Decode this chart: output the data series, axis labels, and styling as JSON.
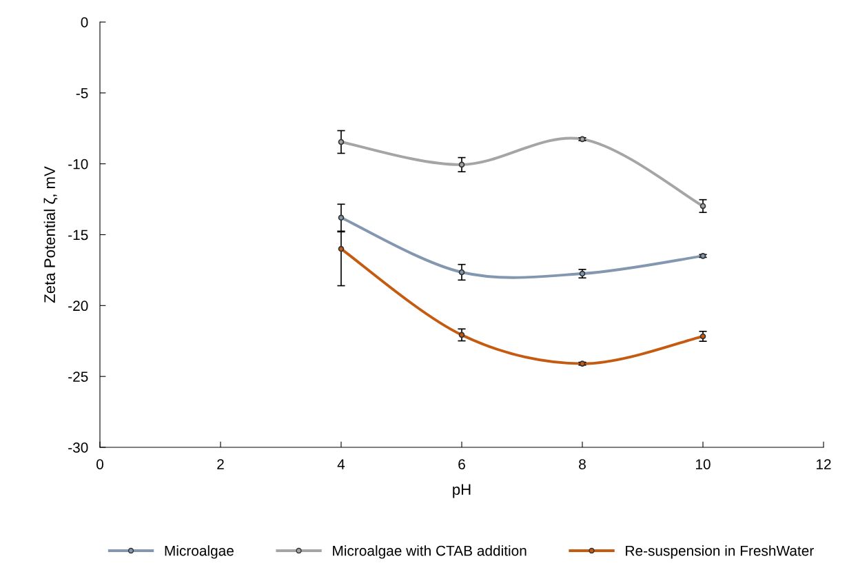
{
  "chart_data": {
    "type": "line",
    "xlabel": "pH",
    "ylabel": "Zeta Potential ζ, mV",
    "x": [
      4,
      6,
      8,
      10
    ],
    "series": [
      {
        "name": "Microalgae",
        "color": "#8497b0",
        "values": [
          -13.8,
          -17.65,
          -17.75,
          -16.5
        ],
        "errors": [
          0.95,
          0.55,
          0.3,
          0.1
        ]
      },
      {
        "name": "Microalgae with CTAB addition",
        "color": "#a5a5a5",
        "values": [
          -8.46,
          -10.06,
          -8.26,
          -12.98
        ],
        "errors": [
          0.8,
          0.5,
          0.1,
          0.45
        ]
      },
      {
        "name": "Re-suspension in FreshWater",
        "color": "#c55a11",
        "values": [
          -16.0,
          -22.07,
          -24.1,
          -22.17
        ],
        "errors": [
          [
            -18.6,
            -14.8
          ],
          0.42,
          0.1,
          0.35
        ]
      }
    ],
    "xlim": [
      0,
      12
    ],
    "xticks": [
      0,
      2,
      4,
      6,
      8,
      10,
      12
    ],
    "ylim": [
      -30,
      0
    ],
    "yticks": [
      -30,
      -25,
      -20,
      -15,
      -10,
      -5,
      0
    ],
    "grid": false,
    "legend": "bottom",
    "marker": "circle",
    "line_style": "solid"
  }
}
